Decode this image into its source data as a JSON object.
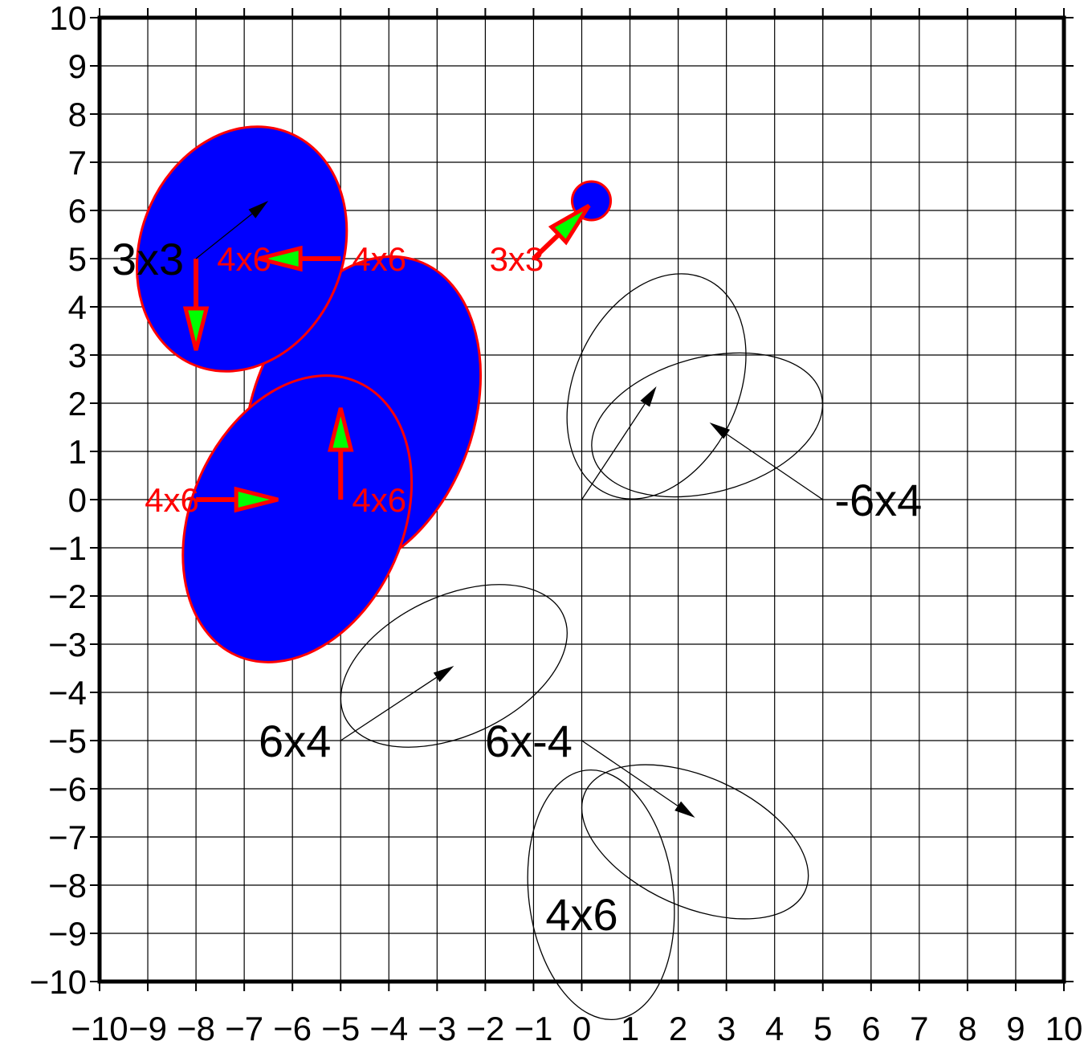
{
  "chart_data": {
    "type": "scatter",
    "title": "",
    "xlabel": "",
    "ylabel": "",
    "xlim": [
      -10,
      10
    ],
    "ylim": [
      -10,
      10
    ],
    "grid": true,
    "x_ticks": [
      -10,
      -9,
      -8,
      -7,
      -6,
      -5,
      -4,
      -3,
      -2,
      -1,
      0,
      1,
      2,
      3,
      4,
      5,
      6,
      7,
      8,
      9,
      10
    ],
    "y_ticks": [
      -10,
      -9,
      -8,
      -7,
      -6,
      -5,
      -4,
      -3,
      -2,
      -1,
      0,
      1,
      2,
      3,
      4,
      5,
      6,
      7,
      8,
      9,
      10
    ],
    "x_tick_labels": [
      "−10",
      "−9",
      "−8",
      "−7",
      "−6",
      "−5",
      "−4",
      "−3",
      "−2",
      "−1",
      "0",
      "1",
      "2",
      "3",
      "4",
      "5",
      "6",
      "7",
      "8",
      "9",
      "10"
    ],
    "y_tick_labels": [
      "−10",
      "−9",
      "−8",
      "−7",
      "−6",
      "−5",
      "−4",
      "−3",
      "−2",
      "−1",
      "0",
      "1",
      "2",
      "3",
      "4",
      "5",
      "6",
      "7",
      "8",
      "9",
      "10"
    ],
    "colors": {
      "filled_ellipse": "#0000ff",
      "filled_outline": "#ff0000",
      "arrow_fill": "#00ff00",
      "arrow_stroke": "#ff0000",
      "outline": "#000000"
    },
    "ellipses": [
      {
        "name": "red-6x4-up",
        "cx": -4.55,
        "cy": 1.75,
        "major": 3.4,
        "minor": 2.3,
        "angle": 70,
        "style": "filled"
      },
      {
        "name": "red-6x4-right",
        "cx": -5.9,
        "cy": -0.4,
        "major": 3.1,
        "minor": 2.2,
        "angle": 66,
        "style": "filled"
      },
      {
        "name": "red-3x3-top-left",
        "cx": -7.05,
        "cy": 5.2,
        "major": 2.6,
        "minor": 2.1,
        "angle": 68,
        "style": "filled"
      },
      {
        "name": "red-3x3-small",
        "cx": 0.2,
        "cy": 6.2,
        "major": 0.4,
        "minor": 0.4,
        "angle": 0,
        "style": "filled"
      },
      {
        "name": "black-upper-1",
        "cx": 1.55,
        "cy": 2.35,
        "major": 2.45,
        "minor": 1.7,
        "angle": 65,
        "style": "outline"
      },
      {
        "name": "black-upper-2",
        "cx": 2.6,
        "cy": 1.55,
        "major": 2.45,
        "minor": 1.4,
        "angle": 15,
        "style": "outline"
      },
      {
        "name": "black-6x4",
        "cx": -2.65,
        "cy": -3.45,
        "major": 2.5,
        "minor": 1.45,
        "angle": 25,
        "style": "outline"
      },
      {
        "name": "black-6x-4",
        "cx": 2.35,
        "cy": -7.1,
        "major": 2.5,
        "minor": 1.35,
        "angle": -24,
        "style": "outline"
      },
      {
        "name": "black-4x6",
        "cx": 0.4,
        "cy": -8.2,
        "major": 2.6,
        "minor": 1.5,
        "angle": 97,
        "style": "outline"
      }
    ],
    "vectors": [
      {
        "name": "red-up",
        "x0": -5,
        "y0": 0,
        "x1": -5,
        "y1": 1.9,
        "style": "red"
      },
      {
        "name": "red-right",
        "x0": -8,
        "y0": 0,
        "x1": -6.3,
        "y1": 0,
        "style": "red"
      },
      {
        "name": "red-left",
        "x0": -5,
        "y0": 5,
        "x1": -6.7,
        "y1": 5,
        "style": "red"
      },
      {
        "name": "red-down",
        "x0": -8,
        "y0": 5,
        "x1": -8,
        "y1": 3.1,
        "style": "red"
      },
      {
        "name": "red-diag",
        "x0": -1,
        "y0": 5,
        "x1": 0.15,
        "y1": 6.1,
        "style": "red"
      },
      {
        "name": "black-3x3",
        "x0": -8,
        "y0": 5,
        "x1": -6.5,
        "y1": 6.2,
        "style": "black"
      },
      {
        "name": "black-upper-1",
        "x0": 0,
        "y0": 0,
        "x1": 1.55,
        "y1": 2.35,
        "style": "black"
      },
      {
        "name": "black-upper-2",
        "x0": 5,
        "y0": 0,
        "x1": 2.65,
        "y1": 1.6,
        "style": "black"
      },
      {
        "name": "black-6x4",
        "x0": -5,
        "y0": -5,
        "x1": -2.65,
        "y1": -3.45,
        "style": "black"
      },
      {
        "name": "black-6x-4",
        "x0": 0,
        "y0": -5,
        "x1": 2.35,
        "y1": -6.6,
        "style": "black"
      }
    ],
    "annotations": [
      {
        "text": "3x3",
        "x": -9.0,
        "y": 5,
        "style": "black"
      },
      {
        "text": "4x6",
        "x": -7.0,
        "y": 5,
        "style": "red"
      },
      {
        "text": "4x6",
        "x": -4.2,
        "y": 5,
        "style": "red"
      },
      {
        "text": "3x3",
        "x": -1.35,
        "y": 5,
        "style": "red"
      },
      {
        "text": "4x6",
        "x": -8.5,
        "y": 0,
        "style": "red"
      },
      {
        "text": "4x6",
        "x": -4.2,
        "y": 0,
        "style": "red"
      },
      {
        "text": "-6x4",
        "x": 6.15,
        "y": 0,
        "style": "black"
      },
      {
        "text": "6x4",
        "x": -5.95,
        "y": -5,
        "style": "black"
      },
      {
        "text": "6x-4",
        "x": -1.1,
        "y": -5,
        "style": "black"
      },
      {
        "text": "4x6",
        "x": 0,
        "y": -8.6,
        "style": "black"
      }
    ]
  }
}
